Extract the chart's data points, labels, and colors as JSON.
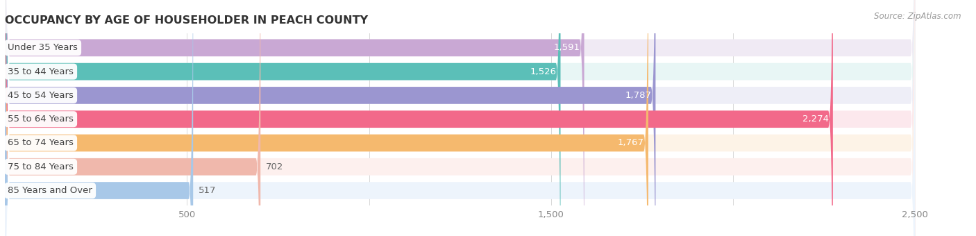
{
  "title": "OCCUPANCY BY AGE OF HOUSEHOLDER IN PEACH COUNTY",
  "source": "Source: ZipAtlas.com",
  "categories": [
    "Under 35 Years",
    "35 to 44 Years",
    "45 to 54 Years",
    "55 to 64 Years",
    "65 to 74 Years",
    "75 to 84 Years",
    "85 Years and Over"
  ],
  "values": [
    1591,
    1526,
    1787,
    2274,
    1767,
    702,
    517
  ],
  "bar_colors": [
    "#c9a8d4",
    "#5bbfb8",
    "#9b96d0",
    "#f2698a",
    "#f5b96e",
    "#f0b8ac",
    "#a8c8e8"
  ],
  "bar_bg_colors": [
    "#f0eaf4",
    "#e8f6f5",
    "#eeeef7",
    "#fce8ed",
    "#fdf3e7",
    "#fdf0ee",
    "#edf4fc"
  ],
  "value_inside": [
    true,
    true,
    true,
    true,
    true,
    false,
    false
  ],
  "xlim": [
    0,
    2600
  ],
  "xlim_display": 2500,
  "xticks": [
    500,
    1500,
    2500
  ],
  "xtick_labels": [
    "500",
    "1,500",
    "2,500"
  ],
  "title_fontsize": 11.5,
  "bar_height": 0.72,
  "label_fontsize": 9.5,
  "value_fontsize": 9.5,
  "source_fontsize": 8.5,
  "background_color": "#ffffff",
  "grid_color": "#d8d8d8",
  "inside_label_color": "#ffffff",
  "outside_label_color": "#666666",
  "inside_threshold": 800
}
